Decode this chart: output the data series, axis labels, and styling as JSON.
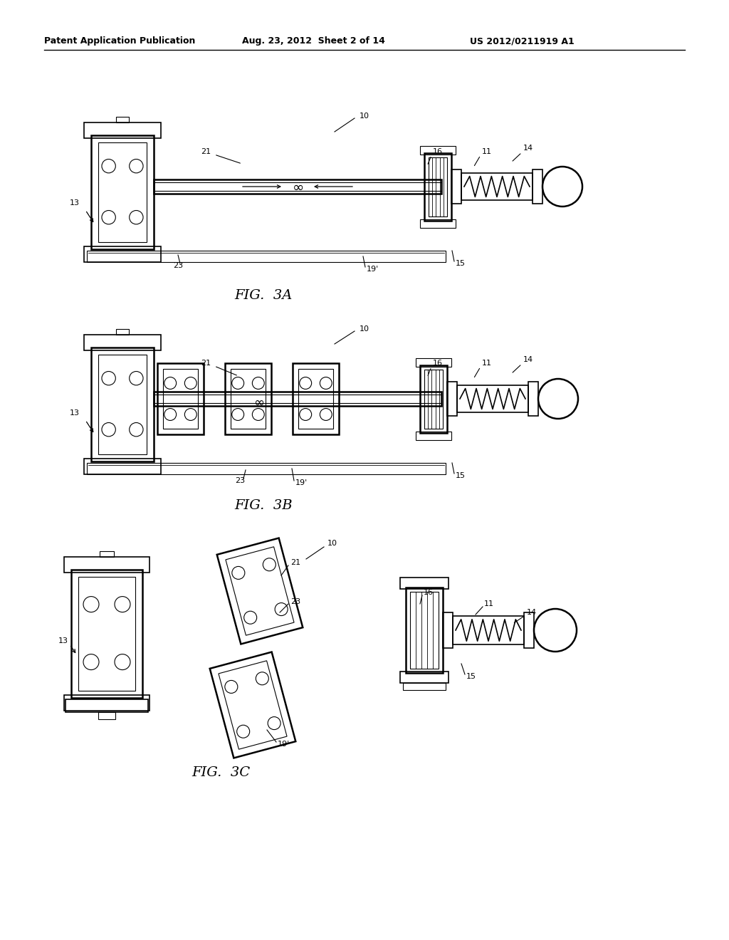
{
  "bg_color": "#ffffff",
  "header_left": "Patent Application Publication",
  "header_center": "Aug. 23, 2012  Sheet 2 of 14",
  "header_right": "US 2012/0211919 A1",
  "fig3a_caption": "FIG.  3A",
  "fig3b_caption": "FIG.  3B",
  "fig3c_caption": "FIG.  3C"
}
